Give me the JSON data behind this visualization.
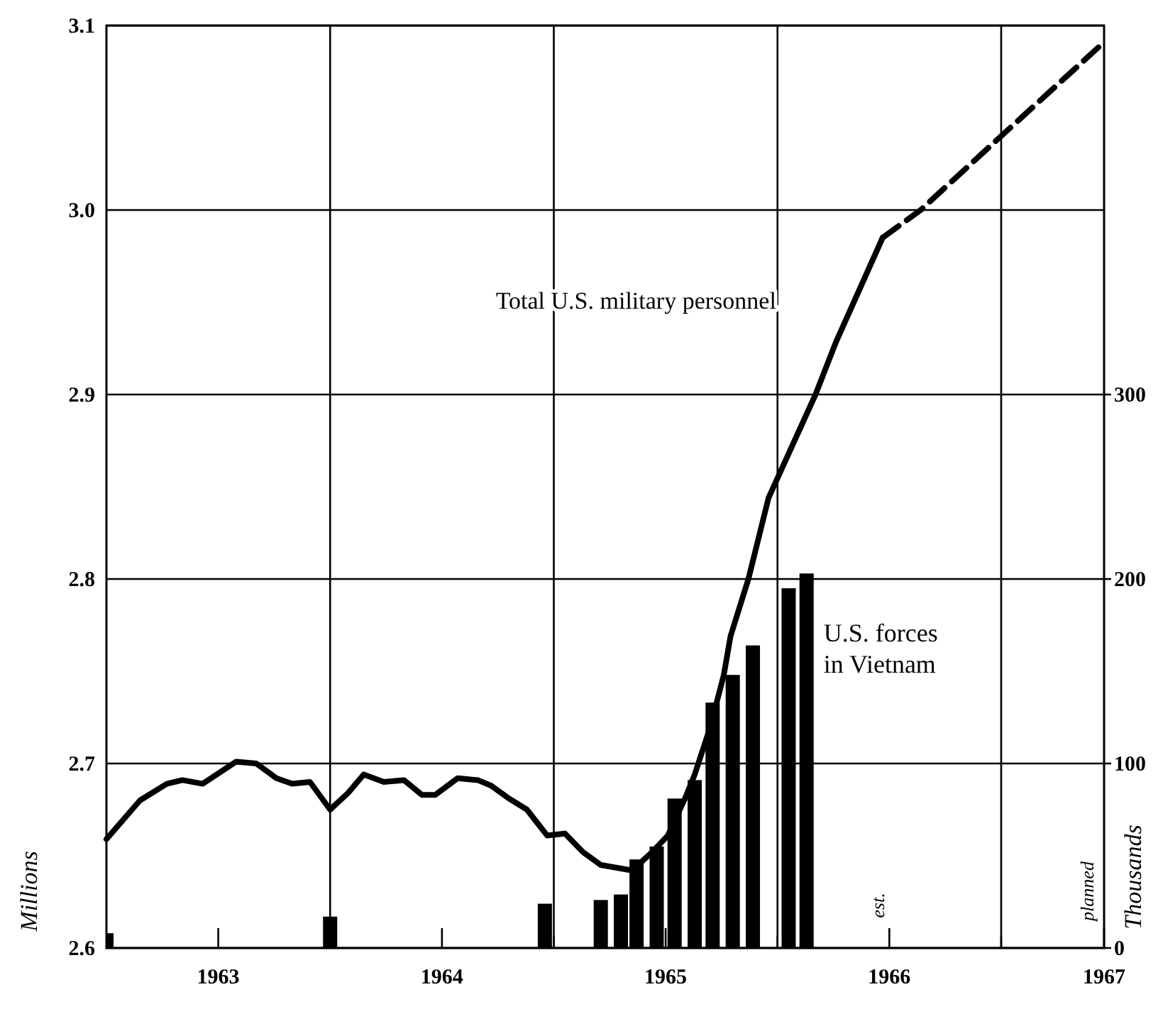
{
  "chart_data": {
    "type": "line",
    "ylabel": "Millions",
    "y2label": "Thousands",
    "xlim": [
      1963,
      1967.46
    ],
    "xticks": [
      {
        "value": 1963.5,
        "label": "1963"
      },
      {
        "value": 1964,
        "label": null
      },
      {
        "value": 1964.5,
        "label": "1964"
      },
      {
        "value": 1965,
        "label": null
      },
      {
        "value": 1965.5,
        "label": "1965"
      },
      {
        "value": 1966,
        "label": null
      },
      {
        "value": 1966.5,
        "label": "1966"
      },
      {
        "value": 1967,
        "label": null
      },
      {
        "value": 1967.46,
        "label": "1967"
      }
    ],
    "ylim": [
      2.6,
      3.1
    ],
    "yticks": [
      2.6,
      2.7,
      2.8,
      2.9,
      {
        "value": 3,
        "label": "3.0"
      },
      3.1
    ],
    "y2lim": [
      0,
      500
    ],
    "y2ticks": [
      0,
      100,
      200,
      300
    ],
    "grid": "y",
    "ref_lines": [
      {
        "axis": "x",
        "value": 1964
      },
      {
        "axis": "x",
        "value": 1965
      },
      {
        "axis": "x",
        "value": 1966
      },
      {
        "axis": "x",
        "value": 1967
      }
    ],
    "annotations": [
      "est.",
      "planned"
    ],
    "series": [
      {
        "name": "Total U.S. military personnel",
        "color": "#000000",
        "line_style": "solid",
        "x": [
          1963.0,
          1963.15,
          1963.27,
          1963.34,
          1963.43,
          1963.58,
          1963.67,
          1963.76,
          1963.83,
          1963.91,
          1964.0,
          1964.08,
          1964.15,
          1964.24,
          1964.33,
          1964.41,
          1964.47,
          1964.57,
          1964.66,
          1964.72,
          1964.8,
          1964.88,
          1964.97,
          1965.05,
          1965.13,
          1965.21,
          1965.35,
          1965.44,
          1965.51,
          1965.59,
          1965.63,
          1965.7,
          1965.76,
          1965.79,
          1965.87,
          1965.96,
          1966.17,
          1966.26,
          1966.47
        ],
        "values": [
          2.659,
          2.68,
          2.689,
          2.691,
          2.689,
          2.701,
          2.7,
          2.692,
          2.689,
          2.69,
          2.675,
          2.684,
          2.694,
          2.69,
          2.691,
          2.683,
          2.683,
          2.692,
          2.691,
          2.688,
          2.681,
          2.675,
          2.661,
          2.662,
          2.652,
          2.645,
          2.642,
          2.652,
          2.661,
          2.682,
          2.694,
          2.72,
          2.748,
          2.769,
          2.8,
          2.844,
          2.9,
          2.928,
          2.985
        ]
      },
      {
        "color": "#000000",
        "line_style": "dashed",
        "x": [
          1966.47,
          1966.64,
          1966.99,
          1967.46
        ],
        "values": [
          2.985,
          3.0,
          3.039,
          3.091
        ]
      },
      {
        "name": "U.S. forces in Vietnam",
        "type": "bar",
        "axis": "y2",
        "color": "#000000",
        "x": [
          1963.0,
          1964.0,
          1964.96,
          1965.21,
          1965.3,
          1965.37,
          1965.46,
          1965.54,
          1965.63,
          1965.71,
          1965.8,
          1965.89,
          1966.05,
          1966.13
        ],
        "values": [
          8,
          17,
          24,
          26,
          29,
          48,
          55,
          81,
          91,
          133,
          148,
          164,
          195,
          203
        ]
      }
    ]
  }
}
